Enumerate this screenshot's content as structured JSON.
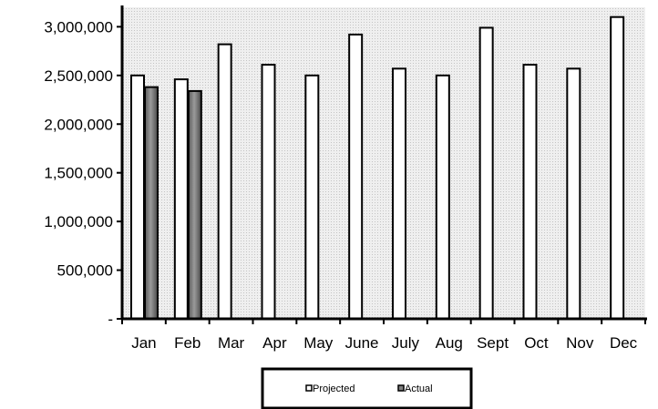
{
  "chart_data": {
    "type": "bar",
    "title": "",
    "xlabel": "",
    "ylabel": "",
    "categories": [
      "Jan",
      "Feb",
      "Mar",
      "Apr",
      "May",
      "June",
      "July",
      "Aug",
      "Sept",
      "Oct",
      "Nov",
      "Dec"
    ],
    "series": [
      {
        "name": "Projected",
        "values": [
          2500000,
          2460000,
          2820000,
          2610000,
          2500000,
          2920000,
          2570000,
          2500000,
          2990000,
          2610000,
          2570000,
          3100000
        ],
        "color": "#ffffff"
      },
      {
        "name": "Actual",
        "values": [
          2380000,
          2340000,
          null,
          null,
          null,
          null,
          null,
          null,
          null,
          null,
          null,
          null
        ],
        "color": "#7f7f7f"
      }
    ],
    "ylim": [
      0,
      3200000
    ],
    "yticks": [
      {
        "value": 0,
        "label": "-"
      },
      {
        "value": 500000,
        "label": "500,000"
      },
      {
        "value": 1000000,
        "label": "1,000,000"
      },
      {
        "value": 1500000,
        "label": "1,500,000"
      },
      {
        "value": 2000000,
        "label": "2,000,000"
      },
      {
        "value": 2500000,
        "label": "2,500,000"
      },
      {
        "value": 3000000,
        "label": "3,000,000"
      }
    ],
    "grid": false,
    "plot_background": "#e8e8e8",
    "legend": {
      "placement": "bottom",
      "entries": [
        "Projected",
        "Actual"
      ]
    }
  }
}
